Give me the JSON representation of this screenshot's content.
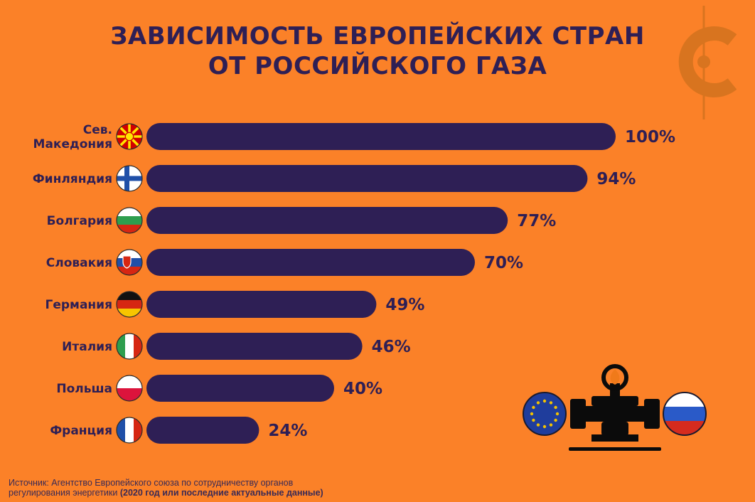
{
  "title_lines": [
    "ЗАВИСИМОСТЬ ЕВРОПЕЙСКИХ СТРАН",
    "ОТ РОССИЙСКОГО ГАЗА"
  ],
  "chart_data": {
    "type": "bar",
    "orientation": "horizontal",
    "title": "ЗАВИСИМОСТЬ ЕВРОПЕЙСКИХ СТРАН ОТ РОССИЙСКОГО ГАЗА",
    "categories": [
      [
        "Сев.",
        "Македония"
      ],
      [
        "Финляндия"
      ],
      [
        "Болгария"
      ],
      [
        "Словакия"
      ],
      [
        "Германия"
      ],
      [
        "Италия"
      ],
      [
        "Польша"
      ],
      [
        "Франция"
      ]
    ],
    "values": [
      100,
      94,
      77,
      70,
      49,
      46,
      40,
      24
    ],
    "value_labels": [
      "100%",
      "94%",
      "77%",
      "70%",
      "49%",
      "46%",
      "40%",
      "24%"
    ],
    "flag_icons": [
      "north-macedonia-flag-icon",
      "finland-flag-icon",
      "bulgaria-flag-icon",
      "slovakia-flag-icon",
      "germany-flag-icon",
      "italy-flag-icon",
      "poland-flag-icon",
      "france-flag-icon"
    ],
    "xlim": [
      0,
      100
    ],
    "grid": false,
    "legend": "none",
    "colors": {
      "bar": "#2E1F55",
      "background": "#FB8128",
      "text": "#2E1F55"
    }
  },
  "source": {
    "line1": "Источник: Агентство Европейского союза по сотрудничеству органов",
    "line2_prefix": "регулирования энергетики ",
    "line2_bold": "(2020 год или последние актуальные данные)"
  },
  "decorations": {
    "logo": "circle-c-logo-icon",
    "illustration": [
      "eu-flag-icon",
      "gas-pipeline-icon",
      "flame-icon",
      "russia-flag-icon"
    ]
  }
}
